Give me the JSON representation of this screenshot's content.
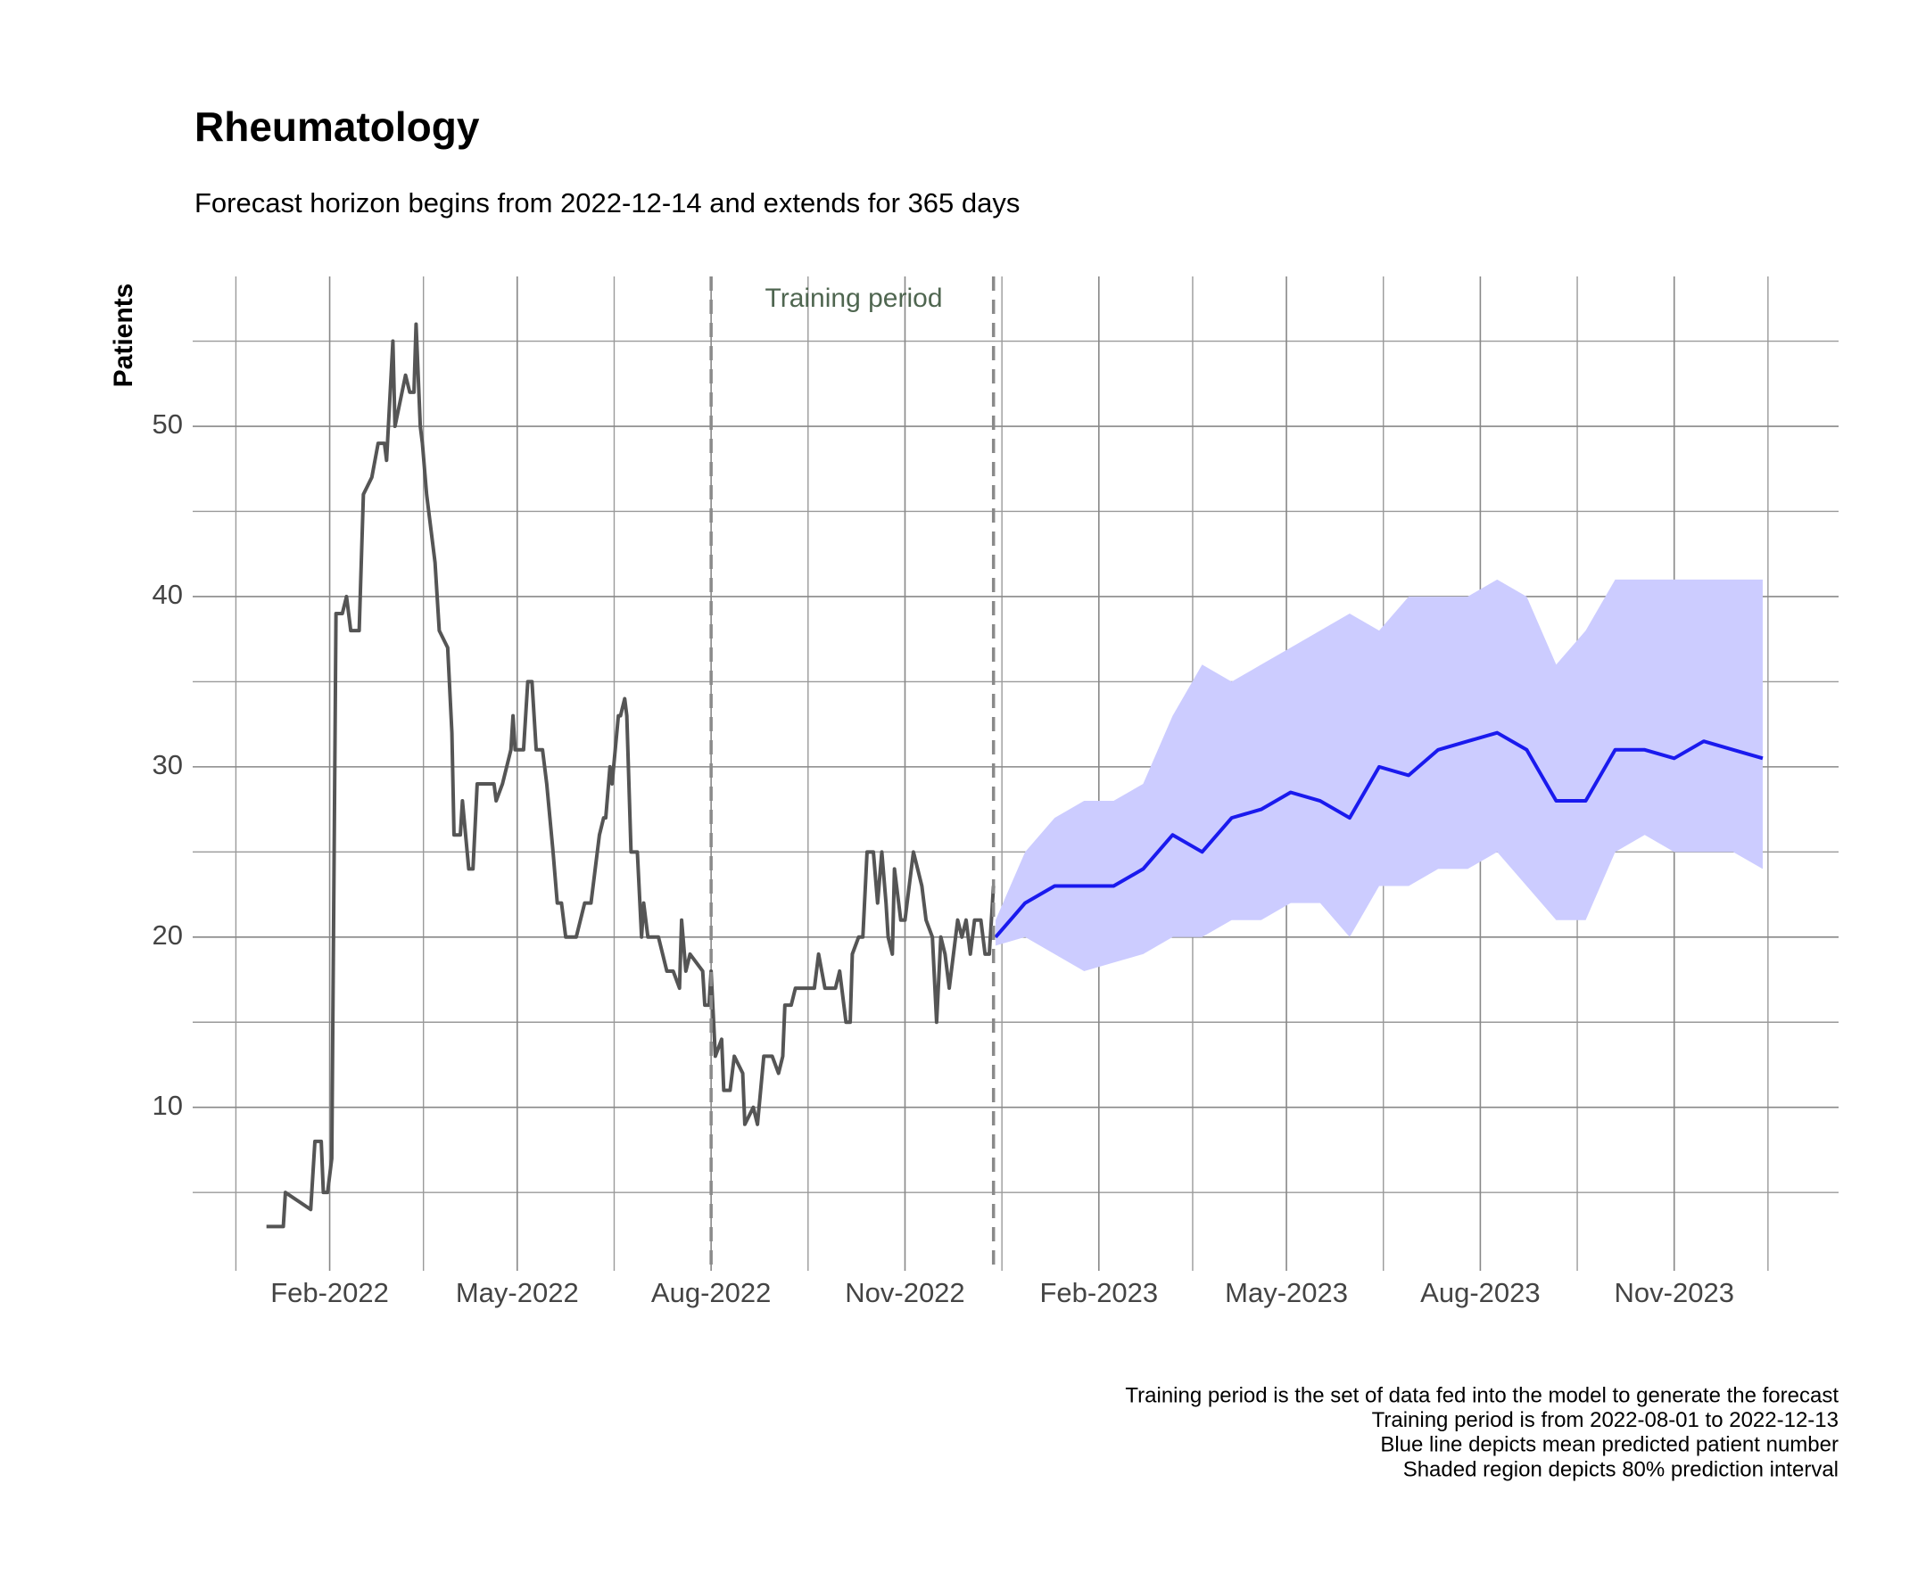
{
  "chart_data": {
    "type": "line",
    "title": "Rheumatology",
    "subtitle": "Forecast horizon begins from 2022-12-14 and extends for 365 days",
    "y_label": "Patients",
    "annotation": "Training period",
    "caption": [
      "Training period is the set of data fed into the model to generate the forecast",
      "Training period is from 2022-08-01 to 2022-12-13",
      "Blue line depicts mean predicted patient number",
      "Shaded region depicts 80% prediction interval"
    ],
    "xlim": [
      "2021-11-28",
      "2024-01-18"
    ],
    "xticks": [
      {
        "value": "2022-02-01",
        "label": "Feb-2022"
      },
      {
        "value": "2022-05-01",
        "label": "May-2022"
      },
      {
        "value": "2022-08-01",
        "label": "Aug-2022"
      },
      {
        "value": "2022-11-01",
        "label": "Nov-2022"
      },
      {
        "value": "2023-02-01",
        "label": "Feb-2023"
      },
      {
        "value": "2023-05-01",
        "label": "May-2023"
      },
      {
        "value": "2023-08-01",
        "label": "Aug-2023"
      },
      {
        "value": "2023-11-01",
        "label": "Nov-2023"
      }
    ],
    "ylim": [
      0.4,
      58.8
    ],
    "yticks": [
      10,
      20,
      30,
      40,
      50
    ],
    "grid": true,
    "vlines": [
      "2022-08-01",
      "2022-12-13"
    ],
    "series": [
      {
        "color": "#555555",
        "x": [
          "2022-01-02",
          "2022-01-10",
          "2022-01-11",
          "2022-01-23",
          "2022-01-25",
          "2022-01-28",
          "2022-01-29",
          "2022-01-31",
          "2022-02-02",
          "2022-02-04",
          "2022-02-07",
          "2022-02-09",
          "2022-02-11",
          "2022-02-15",
          "2022-02-17",
          "2022-02-21",
          "2022-02-24",
          "2022-02-27",
          "2022-02-28",
          "2022-03-03",
          "2022-03-04",
          "2022-03-09",
          "2022-03-11",
          "2022-03-13",
          "2022-03-14",
          "2022-03-16",
          "2022-03-17",
          "2022-03-19",
          "2022-03-23",
          "2022-03-25",
          "2022-03-29",
          "2022-03-31",
          "2022-04-01",
          "2022-04-04",
          "2022-04-05",
          "2022-04-08",
          "2022-04-10",
          "2022-04-12",
          "2022-04-20",
          "2022-04-21",
          "2022-04-24",
          "2022-04-28",
          "2022-04-29",
          "2022-04-30",
          "2022-05-04",
          "2022-05-06",
          "2022-05-08",
          "2022-05-10",
          "2022-05-13",
          "2022-05-15",
          "2022-05-18",
          "2022-05-20",
          "2022-05-22",
          "2022-05-24",
          "2022-05-29",
          "2022-06-02",
          "2022-06-05",
          "2022-06-09",
          "2022-06-11",
          "2022-06-12",
          "2022-06-14",
          "2022-06-15",
          "2022-06-18",
          "2022-06-19",
          "2022-06-21",
          "2022-06-22",
          "2022-06-24",
          "2022-06-27",
          "2022-06-29",
          "2022-06-30",
          "2022-07-02",
          "2022-07-07",
          "2022-07-11",
          "2022-07-14",
          "2022-07-17",
          "2022-07-18",
          "2022-07-20",
          "2022-07-22",
          "2022-07-28",
          "2022-07-29",
          "2022-07-31",
          "2022-08-01",
          "2022-08-03",
          "2022-08-06",
          "2022-08-07",
          "2022-08-10",
          "2022-08-12",
          "2022-08-16",
          "2022-08-17",
          "2022-08-21",
          "2022-08-23",
          "2022-08-26",
          "2022-08-30",
          "2022-09-02",
          "2022-09-04",
          "2022-09-05",
          "2022-09-08",
          "2022-09-10",
          "2022-09-19",
          "2022-09-21",
          "2022-09-24",
          "2022-09-29",
          "2022-10-01",
          "2022-10-04",
          "2022-10-06",
          "2022-10-07",
          "2022-10-10",
          "2022-10-12",
          "2022-10-14",
          "2022-10-17",
          "2022-10-19",
          "2022-10-21",
          "2022-10-23",
          "2022-10-24",
          "2022-10-26",
          "2022-10-27",
          "2022-10-30",
          "2022-11-01",
          "2022-11-03",
          "2022-11-05",
          "2022-11-07",
          "2022-11-09",
          "2022-11-11",
          "2022-11-14",
          "2022-11-16",
          "2022-11-18",
          "2022-11-20",
          "2022-11-22",
          "2022-11-24",
          "2022-11-26",
          "2022-11-28",
          "2022-11-30",
          "2022-12-02",
          "2022-12-04",
          "2022-12-07",
          "2022-12-09",
          "2022-12-11",
          "2022-12-13"
        ],
        "values": [
          3,
          3,
          5,
          4,
          8,
          8,
          5,
          5,
          7,
          39,
          39,
          40,
          38,
          38,
          46,
          47,
          49,
          49,
          48,
          55,
          50,
          53,
          52,
          52,
          56,
          50,
          49,
          46,
          42,
          38,
          37,
          32,
          26,
          26,
          28,
          24,
          24,
          29,
          29,
          28,
          29,
          31,
          33,
          31,
          31,
          35,
          35,
          31,
          31,
          29,
          25,
          22,
          22,
          20,
          20,
          22,
          22,
          26,
          27,
          27,
          30,
          29,
          33,
          33,
          34,
          33,
          25,
          25,
          20,
          22,
          20,
          20,
          18,
          18,
          17,
          21,
          18,
          19,
          18,
          16,
          16,
          18,
          13,
          14,
          11,
          11,
          13,
          12,
          9,
          10,
          9,
          13,
          13,
          12,
          13,
          16,
          16,
          17,
          17,
          19,
          17,
          17,
          18,
          15,
          15,
          19,
          20,
          20,
          25,
          25,
          22,
          25,
          22,
          20,
          19,
          24,
          21,
          21,
          23,
          25,
          24,
          23,
          21,
          20,
          15,
          20,
          19,
          17,
          19,
          21,
          20,
          21,
          19,
          21,
          21,
          19,
          19,
          23
        ]
      },
      {
        "color": "#1a1aee",
        "band_color": "#ccccff",
        "x": [
          "2022-12-14",
          "2022-12-28",
          "2023-01-11",
          "2023-01-25",
          "2023-02-08",
          "2023-02-22",
          "2023-03-08",
          "2023-03-22",
          "2023-04-05",
          "2023-04-19",
          "2023-05-03",
          "2023-05-17",
          "2023-05-31",
          "2023-06-14",
          "2023-06-28",
          "2023-07-12",
          "2023-07-26",
          "2023-08-09",
          "2023-08-23",
          "2023-09-06",
          "2023-09-20",
          "2023-10-04",
          "2023-10-18",
          "2023-11-01",
          "2023-11-15",
          "2023-11-29",
          "2023-12-13"
        ],
        "values": [
          20,
          22,
          23,
          23,
          23,
          24,
          26,
          25,
          27,
          27.5,
          28.5,
          28,
          27,
          30,
          29.5,
          31,
          31.5,
          32,
          31,
          28,
          28,
          31,
          31,
          30.5,
          31.5,
          31,
          30.5
        ],
        "lower": [
          19.5,
          20,
          19,
          18,
          18.5,
          19,
          20,
          20,
          21,
          21,
          22,
          22,
          20,
          23,
          23,
          24,
          24,
          25,
          23,
          21,
          21,
          25,
          26,
          25,
          25,
          25,
          24
        ],
        "upper": [
          21,
          25,
          27,
          28,
          28,
          29,
          33,
          36,
          35,
          36,
          37,
          38,
          39,
          38,
          40,
          40,
          40,
          41,
          40,
          36,
          38,
          41,
          41,
          41,
          41,
          41,
          41
        ]
      }
    ]
  }
}
